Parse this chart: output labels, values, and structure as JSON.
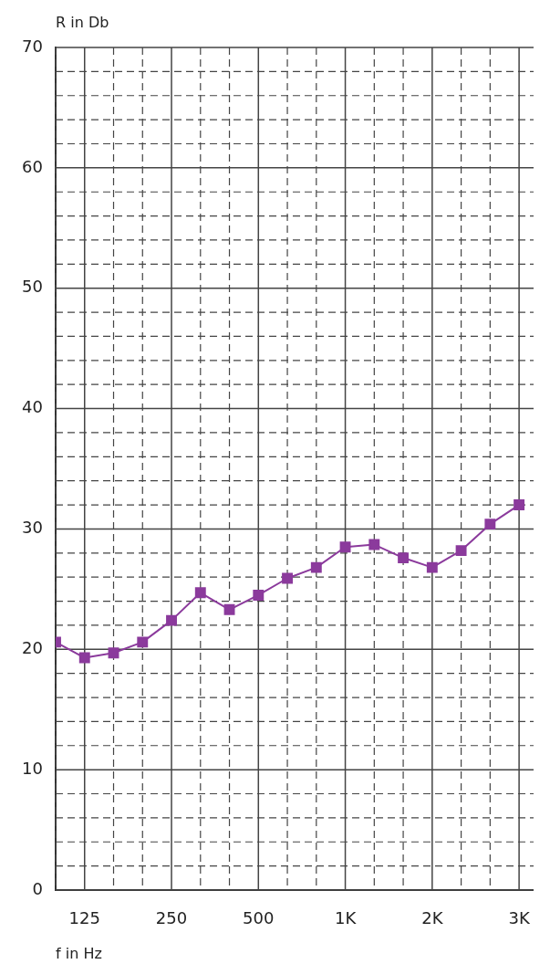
{
  "chart_data": {
    "type": "line",
    "xlabel": "f in Hz",
    "ylabel": "R in Db",
    "categories": [
      null,
      "125",
      null,
      null,
      "250",
      null,
      null,
      "500",
      null,
      null,
      "1K",
      null,
      null,
      "2K",
      null,
      null,
      "3K"
    ],
    "series": [
      {
        "color": "#8b3a9c",
        "values": [
          20.6,
          19.3,
          19.7,
          20.6,
          22.4,
          24.7,
          23.3,
          24.5,
          25.9,
          26.8,
          28.5,
          28.7,
          27.6,
          26.8,
          28.2,
          30.4,
          32.0
        ]
      }
    ],
    "ylim": [
      0,
      70
    ],
    "yticks": [
      0,
      {
        "value": 2,
        "label": null
      },
      {
        "value": 4,
        "label": null
      },
      {
        "value": 6,
        "label": null
      },
      {
        "value": 8,
        "label": null
      },
      10,
      {
        "value": 12,
        "label": null
      },
      {
        "value": 14,
        "label": null
      },
      {
        "value": 16,
        "label": null
      },
      {
        "value": 18,
        "label": null
      },
      20,
      {
        "value": 22,
        "label": null
      },
      {
        "value": 24,
        "label": null
      },
      {
        "value": 26,
        "label": null
      },
      {
        "value": 28,
        "label": null
      },
      30,
      {
        "value": 32,
        "label": null
      },
      {
        "value": 34,
        "label": null
      },
      {
        "value": 36,
        "label": null
      },
      {
        "value": 38,
        "label": null
      },
      40,
      {
        "value": 42,
        "label": null
      },
      {
        "value": 44,
        "label": null
      },
      {
        "value": 46,
        "label": null
      },
      {
        "value": 48,
        "label": null
      },
      50,
      {
        "value": 52,
        "label": null
      },
      {
        "value": 54,
        "label": null
      },
      {
        "value": 56,
        "label": null
      },
      {
        "value": 58,
        "label": null
      },
      60,
      {
        "value": 62,
        "label": null
      },
      {
        "value": 64,
        "label": null
      },
      {
        "value": 66,
        "label": null
      },
      {
        "value": 68,
        "label": null
      },
      70
    ],
    "grid": true,
    "marker": "square",
    "line_style": "solid",
    "legend": false
  }
}
